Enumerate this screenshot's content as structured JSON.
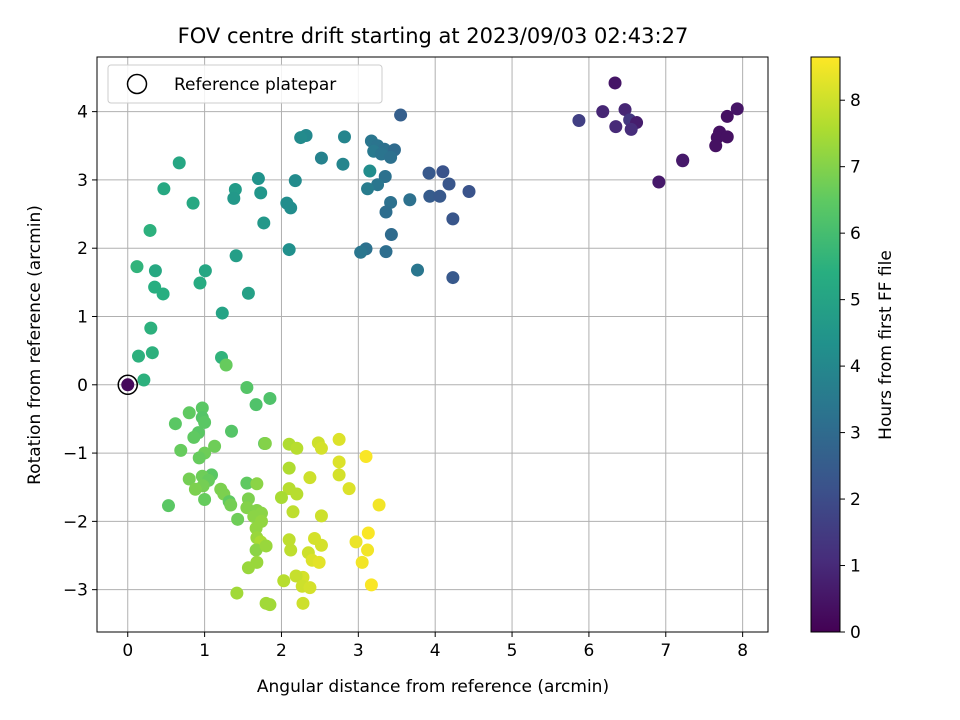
{
  "chart_data": {
    "type": "scatter",
    "title": "FOV centre drift starting at 2023/09/03 02:43:27",
    "xlabel": "Angular distance from reference (arcmin)",
    "ylabel": "Rotation from reference (arcmin)",
    "xlim": [
      -0.4,
      8.33
    ],
    "ylim": [
      -3.62,
      4.8
    ],
    "xticks": [
      0,
      1,
      2,
      3,
      4,
      5,
      6,
      7,
      8
    ],
    "yticks": [
      -3,
      -2,
      -1,
      0,
      1,
      2,
      3,
      4
    ],
    "grid": true,
    "legend": {
      "position": "top-left",
      "label": "Reference platepar"
    },
    "colorbar": {
      "label": "Hours from first FF file",
      "range": [
        0,
        8.65
      ],
      "ticks": [
        0,
        1,
        2,
        3,
        4,
        5,
        6,
        7,
        8
      ],
      "colormap": "viridis"
    },
    "reference_point": {
      "x": 0,
      "y": 0,
      "t": 0.2
    },
    "points": [
      {
        "x": 6.34,
        "y": 4.42,
        "t": 0.5
      },
      {
        "x": 6.18,
        "y": 4.0,
        "t": 0.9
      },
      {
        "x": 6.47,
        "y": 4.03,
        "t": 0.9
      },
      {
        "x": 6.53,
        "y": 3.88,
        "t": 1.4
      },
      {
        "x": 6.62,
        "y": 3.84,
        "t": 0.7
      },
      {
        "x": 6.35,
        "y": 3.78,
        "t": 1.0
      },
      {
        "x": 6.55,
        "y": 3.74,
        "t": 1.1
      },
      {
        "x": 5.87,
        "y": 3.87,
        "t": 1.6
      },
      {
        "x": 7.93,
        "y": 4.04,
        "t": 0.5
      },
      {
        "x": 7.8,
        "y": 3.93,
        "t": 0.4
      },
      {
        "x": 7.7,
        "y": 3.7,
        "t": 0.4
      },
      {
        "x": 7.67,
        "y": 3.62,
        "t": 0.4
      },
      {
        "x": 7.8,
        "y": 3.63,
        "t": 0.4
      },
      {
        "x": 7.65,
        "y": 3.5,
        "t": 0.4
      },
      {
        "x": 7.22,
        "y": 3.28,
        "t": 0.6
      },
      {
        "x": 7.22,
        "y": 3.29,
        "t": 0.6
      },
      {
        "x": 6.91,
        "y": 2.97,
        "t": 0.6
      },
      {
        "x": 3.55,
        "y": 3.95,
        "t": 2.6
      },
      {
        "x": 3.17,
        "y": 3.57,
        "t": 3.4
      },
      {
        "x": 3.25,
        "y": 3.5,
        "t": 3.3
      },
      {
        "x": 3.34,
        "y": 3.45,
        "t": 3.2
      },
      {
        "x": 3.47,
        "y": 3.44,
        "t": 3.0
      },
      {
        "x": 3.2,
        "y": 3.42,
        "t": 3.5
      },
      {
        "x": 3.3,
        "y": 3.38,
        "t": 3.3
      },
      {
        "x": 3.42,
        "y": 3.33,
        "t": 3.2
      },
      {
        "x": 3.15,
        "y": 3.13,
        "t": 4.2
      },
      {
        "x": 3.35,
        "y": 3.05,
        "t": 3.2
      },
      {
        "x": 3.25,
        "y": 2.93,
        "t": 3.4
      },
      {
        "x": 3.12,
        "y": 2.87,
        "t": 3.6
      },
      {
        "x": 3.42,
        "y": 2.67,
        "t": 3.2
      },
      {
        "x": 3.36,
        "y": 2.53,
        "t": 3.1
      },
      {
        "x": 3.43,
        "y": 2.2,
        "t": 3.0
      },
      {
        "x": 3.1,
        "y": 1.99,
        "t": 3.2
      },
      {
        "x": 3.03,
        "y": 1.94,
        "t": 3.4
      },
      {
        "x": 3.36,
        "y": 1.95,
        "t": 3.1
      },
      {
        "x": 3.67,
        "y": 2.71,
        "t": 3.2
      },
      {
        "x": 3.77,
        "y": 1.68,
        "t": 3.4
      },
      {
        "x": 3.92,
        "y": 3.1,
        "t": 2.4
      },
      {
        "x": 4.1,
        "y": 3.12,
        "t": 2.2
      },
      {
        "x": 4.18,
        "y": 2.94,
        "t": 2.3
      },
      {
        "x": 3.93,
        "y": 2.76,
        "t": 2.5
      },
      {
        "x": 4.06,
        "y": 2.76,
        "t": 2.4
      },
      {
        "x": 4.44,
        "y": 2.83,
        "t": 2.2
      },
      {
        "x": 4.23,
        "y": 2.43,
        "t": 2.3
      },
      {
        "x": 4.23,
        "y": 1.57,
        "t": 2.4
      },
      {
        "x": 2.32,
        "y": 3.65,
        "t": 4.0
      },
      {
        "x": 2.25,
        "y": 3.62,
        "t": 4.1
      },
      {
        "x": 2.82,
        "y": 3.63,
        "t": 3.9
      },
      {
        "x": 2.52,
        "y": 3.32,
        "t": 3.8
      },
      {
        "x": 2.8,
        "y": 3.23,
        "t": 3.9
      },
      {
        "x": 2.18,
        "y": 2.99,
        "t": 4.1
      },
      {
        "x": 2.07,
        "y": 2.66,
        "t": 4.2
      },
      {
        "x": 2.12,
        "y": 2.59,
        "t": 4.2
      },
      {
        "x": 2.1,
        "y": 1.98,
        "t": 4.3
      },
      {
        "x": 1.7,
        "y": 3.02,
        "t": 4.4
      },
      {
        "x": 1.73,
        "y": 2.81,
        "t": 4.5
      },
      {
        "x": 1.4,
        "y": 2.86,
        "t": 4.7
      },
      {
        "x": 1.38,
        "y": 2.73,
        "t": 4.6
      },
      {
        "x": 1.77,
        "y": 2.37,
        "t": 4.6
      },
      {
        "x": 1.41,
        "y": 1.89,
        "t": 4.8
      },
      {
        "x": 1.57,
        "y": 1.34,
        "t": 4.9
      },
      {
        "x": 1.23,
        "y": 1.05,
        "t": 5.0
      },
      {
        "x": 0.67,
        "y": 3.25,
        "t": 5.1
      },
      {
        "x": 0.47,
        "y": 2.87,
        "t": 5.2
      },
      {
        "x": 0.85,
        "y": 2.66,
        "t": 5.2
      },
      {
        "x": 0.29,
        "y": 2.26,
        "t": 5.5
      },
      {
        "x": 0.12,
        "y": 1.73,
        "t": 5.6
      },
      {
        "x": 0.36,
        "y": 1.67,
        "t": 5.2
      },
      {
        "x": 1.01,
        "y": 1.67,
        "t": 5.1
      },
      {
        "x": 0.94,
        "y": 1.49,
        "t": 5.3
      },
      {
        "x": 0.35,
        "y": 1.43,
        "t": 5.4
      },
      {
        "x": 0.46,
        "y": 1.33,
        "t": 5.4
      },
      {
        "x": 0.3,
        "y": 0.83,
        "t": 5.5
      },
      {
        "x": 0.32,
        "y": 0.47,
        "t": 5.5
      },
      {
        "x": 0.14,
        "y": 0.42,
        "t": 5.5
      },
      {
        "x": 0.21,
        "y": 0.07,
        "t": 5.5
      },
      {
        "x": 1.22,
        "y": 0.4,
        "t": 5.6
      },
      {
        "x": 1.28,
        "y": 0.29,
        "t": 6.6
      },
      {
        "x": 1.55,
        "y": -0.04,
        "t": 6.3
      },
      {
        "x": 1.85,
        "y": -0.2,
        "t": 6.2
      },
      {
        "x": 1.67,
        "y": -0.29,
        "t": 6.2
      },
      {
        "x": 0.97,
        "y": -0.34,
        "t": 6.4
      },
      {
        "x": 0.8,
        "y": -0.41,
        "t": 6.5
      },
      {
        "x": 0.97,
        "y": -0.48,
        "t": 6.3
      },
      {
        "x": 0.62,
        "y": -0.57,
        "t": 6.4
      },
      {
        "x": 1.0,
        "y": -0.55,
        "t": 6.4
      },
      {
        "x": 1.35,
        "y": -0.68,
        "t": 6.3
      },
      {
        "x": 0.92,
        "y": -0.7,
        "t": 6.4
      },
      {
        "x": 0.86,
        "y": -0.77,
        "t": 6.5
      },
      {
        "x": 1.78,
        "y": -0.86,
        "t": 6.3
      },
      {
        "x": 1.79,
        "y": -0.86,
        "t": 7.0
      },
      {
        "x": 1.13,
        "y": -0.9,
        "t": 6.7
      },
      {
        "x": 0.69,
        "y": -0.96,
        "t": 6.6
      },
      {
        "x": 1.0,
        "y": -1.0,
        "t": 6.7
      },
      {
        "x": 0.93,
        "y": -1.07,
        "t": 6.6
      },
      {
        "x": 1.09,
        "y": -1.32,
        "t": 6.4
      },
      {
        "x": 0.97,
        "y": -1.34,
        "t": 6.7
      },
      {
        "x": 0.8,
        "y": -1.38,
        "t": 6.8
      },
      {
        "x": 1.05,
        "y": -1.4,
        "t": 6.6
      },
      {
        "x": 0.98,
        "y": -1.48,
        "t": 6.8
      },
      {
        "x": 1.55,
        "y": -1.44,
        "t": 6.5
      },
      {
        "x": 0.88,
        "y": -1.53,
        "t": 6.9
      },
      {
        "x": 1.21,
        "y": -1.53,
        "t": 6.9
      },
      {
        "x": 1.25,
        "y": -1.6,
        "t": 6.9
      },
      {
        "x": 1.0,
        "y": -1.68,
        "t": 6.6
      },
      {
        "x": 1.32,
        "y": -1.71,
        "t": 6.5
      },
      {
        "x": 1.34,
        "y": -1.76,
        "t": 6.8
      },
      {
        "x": 0.53,
        "y": -1.77,
        "t": 6.4
      },
      {
        "x": 1.57,
        "y": -1.67,
        "t": 6.9
      },
      {
        "x": 1.55,
        "y": -1.8,
        "t": 7.0
      },
      {
        "x": 1.68,
        "y": -1.84,
        "t": 7.0
      },
      {
        "x": 1.74,
        "y": -1.88,
        "t": 7.1
      },
      {
        "x": 1.43,
        "y": -1.97,
        "t": 6.7
      },
      {
        "x": 1.64,
        "y": -1.93,
        "t": 7.1
      },
      {
        "x": 1.74,
        "y": -2.0,
        "t": 7.2
      },
      {
        "x": 1.67,
        "y": -2.1,
        "t": 7.2
      },
      {
        "x": 1.68,
        "y": -2.24,
        "t": 7.3
      },
      {
        "x": 1.73,
        "y": -2.3,
        "t": 7.5
      },
      {
        "x": 1.67,
        "y": -2.42,
        "t": 7.1
      },
      {
        "x": 1.8,
        "y": -2.36,
        "t": 7.3
      },
      {
        "x": 1.68,
        "y": -2.6,
        "t": 7.3
      },
      {
        "x": 1.57,
        "y": -2.68,
        "t": 7.3
      },
      {
        "x": 1.42,
        "y": -3.05,
        "t": 7.4
      },
      {
        "x": 1.8,
        "y": -3.2,
        "t": 7.4
      },
      {
        "x": 1.85,
        "y": -3.22,
        "t": 7.4
      },
      {
        "x": 1.68,
        "y": -1.45,
        "t": 7.1
      },
      {
        "x": 2.1,
        "y": -0.87,
        "t": 7.6
      },
      {
        "x": 2.2,
        "y": -0.93,
        "t": 7.7
      },
      {
        "x": 2.48,
        "y": -0.85,
        "t": 8.0
      },
      {
        "x": 2.52,
        "y": -0.93,
        "t": 8.1
      },
      {
        "x": 2.75,
        "y": -0.8,
        "t": 8.2
      },
      {
        "x": 2.75,
        "y": -1.13,
        "t": 8.2
      },
      {
        "x": 2.1,
        "y": -1.22,
        "t": 7.6
      },
      {
        "x": 2.37,
        "y": -1.36,
        "t": 8.0
      },
      {
        "x": 2.75,
        "y": -1.32,
        "t": 8.1
      },
      {
        "x": 2.1,
        "y": -1.52,
        "t": 7.7
      },
      {
        "x": 2.2,
        "y": -1.6,
        "t": 7.7
      },
      {
        "x": 2.0,
        "y": -1.65,
        "t": 7.5
      },
      {
        "x": 2.88,
        "y": -1.52,
        "t": 8.2
      },
      {
        "x": 2.15,
        "y": -1.86,
        "t": 7.8
      },
      {
        "x": 2.52,
        "y": -1.92,
        "t": 8.0
      },
      {
        "x": 3.1,
        "y": -1.05,
        "t": 8.6
      },
      {
        "x": 3.27,
        "y": -1.76,
        "t": 8.5
      },
      {
        "x": 3.13,
        "y": -2.17,
        "t": 8.6
      },
      {
        "x": 2.1,
        "y": -2.27,
        "t": 7.8
      },
      {
        "x": 2.12,
        "y": -2.42,
        "t": 7.8
      },
      {
        "x": 2.35,
        "y": -2.46,
        "t": 8.0
      },
      {
        "x": 2.43,
        "y": -2.25,
        "t": 8.1
      },
      {
        "x": 2.52,
        "y": -2.35,
        "t": 8.1
      },
      {
        "x": 2.97,
        "y": -2.3,
        "t": 8.4
      },
      {
        "x": 3.12,
        "y": -2.42,
        "t": 8.5
      },
      {
        "x": 2.4,
        "y": -2.57,
        "t": 8.2
      },
      {
        "x": 2.49,
        "y": -2.6,
        "t": 8.3
      },
      {
        "x": 3.05,
        "y": -2.6,
        "t": 8.5
      },
      {
        "x": 2.28,
        "y": -2.82,
        "t": 8.1
      },
      {
        "x": 2.19,
        "y": -2.8,
        "t": 7.9
      },
      {
        "x": 2.03,
        "y": -2.87,
        "t": 7.7
      },
      {
        "x": 2.27,
        "y": -2.95,
        "t": 8.0
      },
      {
        "x": 2.37,
        "y": -2.97,
        "t": 8.1
      },
      {
        "x": 3.17,
        "y": -2.93,
        "t": 8.6
      },
      {
        "x": 2.28,
        "y": -3.2,
        "t": 8.0
      }
    ]
  }
}
